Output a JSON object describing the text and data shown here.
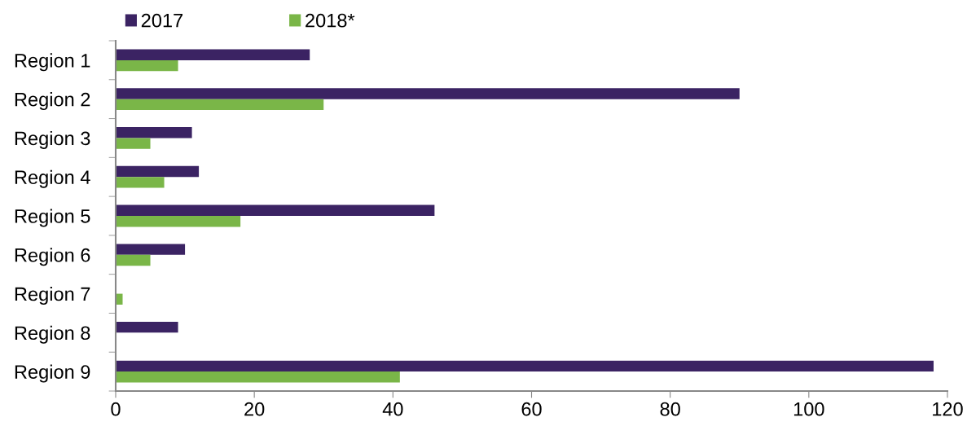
{
  "chart_data": {
    "type": "bar",
    "orientation": "horizontal",
    "categories": [
      "Region 1",
      "Region 2",
      "Region 3",
      "Region 4",
      "Region 5",
      "Region 6",
      "Region 7",
      "Region 8",
      "Region 9"
    ],
    "series": [
      {
        "name": "2017",
        "color": "#3b2363",
        "values": [
          28,
          90,
          11,
          12,
          46,
          10,
          0,
          9,
          118
        ]
      },
      {
        "name": "2018*",
        "color": "#7ab648",
        "values": [
          9,
          30,
          5,
          7,
          18,
          5,
          1,
          0,
          41
        ]
      }
    ],
    "xlim": [
      0,
      120
    ],
    "xticks": [
      0,
      20,
      40,
      60,
      80,
      100,
      120
    ],
    "grid": false,
    "legend": "top"
  }
}
